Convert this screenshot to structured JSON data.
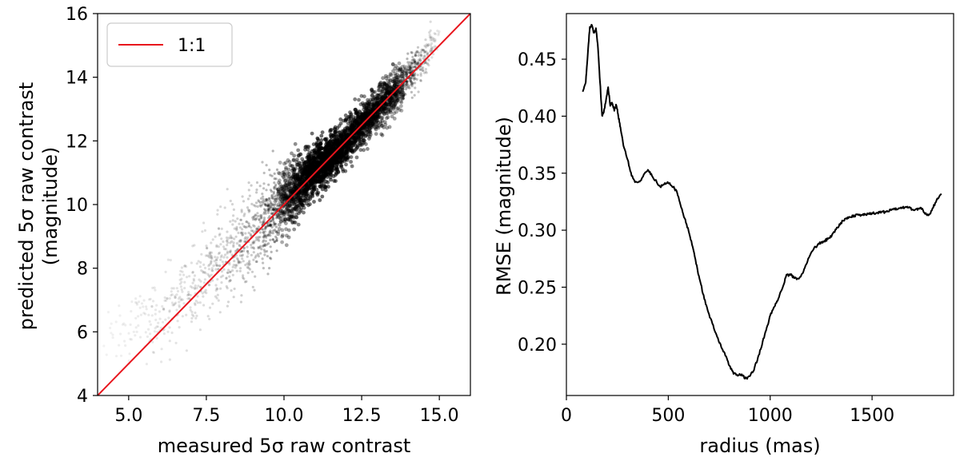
{
  "chart_data": [
    {
      "type": "scatter",
      "xlabel": "measured 5σ raw contrast",
      "ylabel": "predicted 5σ raw contrast",
      "ylabel_unit": "(magnitude)",
      "xlim": [
        4,
        16
      ],
      "ylim": [
        4,
        16
      ],
      "xticks": [
        5.0,
        7.5,
        10.0,
        12.5,
        15.0
      ],
      "xtick_labels": [
        "5.0",
        "7.5",
        "10.0",
        "12.5",
        "15.0"
      ],
      "yticks": [
        4,
        6,
        8,
        10,
        12,
        14,
        16
      ],
      "ytick_labels": [
        "4",
        "6",
        "8",
        "10",
        "12",
        "14",
        "16"
      ],
      "grid": false,
      "legend_position": "top-left",
      "point_color": "#000000",
      "series": [
        {
          "name": "1:1",
          "type": "line",
          "color": "#e8141c",
          "x": [
            4,
            16
          ],
          "y": [
            4,
            16
          ]
        }
      ],
      "density_profile": {
        "x": [
          4.2,
          5.0,
          6.0,
          7.0,
          8.0,
          9.0,
          10.0,
          10.5,
          11.0,
          11.5,
          12.0,
          12.5,
          13.0,
          13.5,
          14.0,
          14.5,
          15.0
        ],
        "y_center": [
          5.6,
          6.0,
          6.6,
          7.3,
          8.2,
          9.1,
          10.1,
          10.6,
          11.1,
          11.5,
          12.0,
          12.5,
          13.0,
          13.5,
          14.0,
          14.6,
          15.4
        ],
        "y_spread": [
          0.35,
          0.5,
          0.6,
          0.65,
          0.7,
          0.7,
          0.55,
          0.45,
          0.4,
          0.35,
          0.33,
          0.33,
          0.33,
          0.33,
          0.3,
          0.3,
          0.15
        ],
        "relative_density": [
          0.02,
          0.05,
          0.1,
          0.15,
          0.2,
          0.3,
          0.55,
          0.8,
          1.0,
          1.0,
          0.9,
          0.8,
          0.7,
          0.6,
          0.45,
          0.25,
          0.08
        ]
      }
    },
    {
      "type": "line",
      "xlabel": "radius (mas)",
      "ylabel": "RMSE (magnitude)",
      "xlim": [
        0,
        1900
      ],
      "ylim": [
        0.155,
        0.49
      ],
      "xticks": [
        0,
        500,
        1000,
        1500
      ],
      "xtick_labels": [
        "0",
        "500",
        "1000",
        "1500"
      ],
      "yticks": [
        0.2,
        0.25,
        0.3,
        0.35,
        0.4,
        0.45
      ],
      "ytick_labels": [
        "0.20",
        "0.25",
        "0.30",
        "0.35",
        "0.40",
        "0.45"
      ],
      "grid": false,
      "series": [
        {
          "color": "#000000",
          "x": [
            80,
            95,
            105,
            115,
            125,
            135,
            145,
            155,
            165,
            175,
            185,
            195,
            205,
            215,
            225,
            235,
            245,
            255,
            265,
            280,
            300,
            320,
            340,
            360,
            380,
            400,
            420,
            440,
            460,
            480,
            500,
            520,
            540,
            560,
            580,
            600,
            620,
            640,
            660,
            680,
            700,
            720,
            740,
            760,
            780,
            800,
            820,
            840,
            860,
            880,
            900,
            920,
            940,
            960,
            980,
            1000,
            1020,
            1040,
            1060,
            1080,
            1100,
            1120,
            1140,
            1160,
            1180,
            1200,
            1220,
            1240,
            1260,
            1280,
            1300,
            1320,
            1340,
            1360,
            1380,
            1400,
            1420,
            1440,
            1460,
            1480,
            1500,
            1520,
            1540,
            1560,
            1580,
            1600,
            1620,
            1640,
            1660,
            1680,
            1700,
            1720,
            1740,
            1760,
            1780,
            1800,
            1820,
            1840
          ],
          "y": [
            0.422,
            0.43,
            0.455,
            0.478,
            0.48,
            0.473,
            0.477,
            0.46,
            0.43,
            0.4,
            0.405,
            0.415,
            0.425,
            0.41,
            0.412,
            0.405,
            0.41,
            0.4,
            0.39,
            0.375,
            0.362,
            0.348,
            0.342,
            0.343,
            0.348,
            0.353,
            0.348,
            0.343,
            0.338,
            0.34,
            0.342,
            0.339,
            0.334,
            0.323,
            0.31,
            0.3,
            0.285,
            0.268,
            0.252,
            0.238,
            0.226,
            0.216,
            0.206,
            0.198,
            0.19,
            0.181,
            0.175,
            0.173,
            0.173,
            0.17,
            0.172,
            0.178,
            0.188,
            0.2,
            0.212,
            0.225,
            0.232,
            0.24,
            0.25,
            0.26,
            0.261,
            0.258,
            0.257,
            0.262,
            0.272,
            0.28,
            0.285,
            0.288,
            0.29,
            0.292,
            0.295,
            0.3,
            0.305,
            0.309,
            0.311,
            0.312,
            0.313,
            0.313,
            0.314,
            0.314,
            0.315,
            0.315,
            0.316,
            0.316,
            0.317,
            0.318,
            0.319,
            0.32,
            0.32,
            0.32,
            0.318,
            0.318,
            0.32,
            0.315,
            0.313,
            0.32,
            0.328,
            0.332
          ]
        }
      ]
    }
  ]
}
